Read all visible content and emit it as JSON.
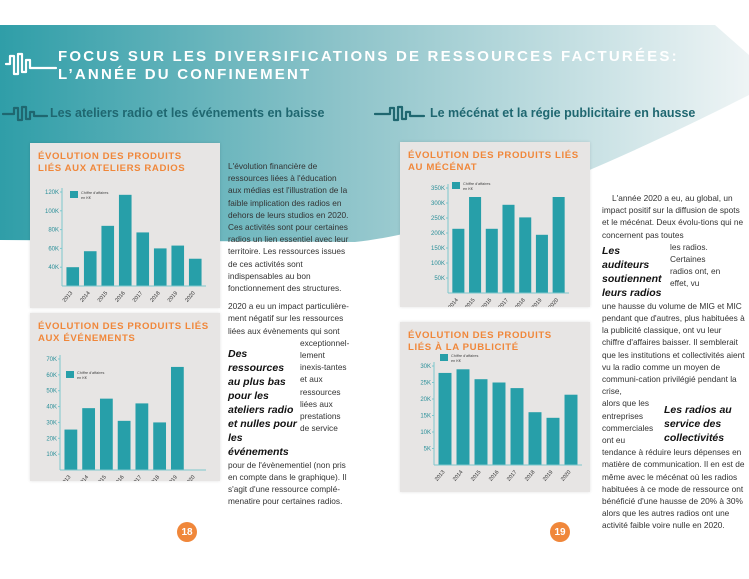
{
  "colors": {
    "teal": "#2aa0aa",
    "orange": "#f0873a",
    "dark_teal": "#1f6770",
    "bar": "#279fa9"
  },
  "header": {
    "title_line1": "FOCUS SUR LES DIVERSIFICATIONS DE  RESSOURCES FACTURÉES:",
    "title_line2": "L’ANNÉE DU CONFINEMENT",
    "icon": "sound-wave-icon"
  },
  "left": {
    "subtitle": "Les ateliers radio et les événements en baisse",
    "text": {
      "p1": "L'évolution financière de ressources liées à l'éducation aux médias est l'illustration de la faible implication des radios en dehors de leurs studios en 2020. Ces activités sont pour certaines radios un lien essentiel avec leur territoire. Les ressources issues de ces activités sont indispensables au bon fonctionnement des structures.",
      "p2a": "2020 a eu un impact particulière-ment négatif sur les ressources liées aux évènements qui sont",
      "p2side": "exceptionnel-lement inexis-tantes et aux ressources liées aux prestations de service",
      "callout": "Des ressources au plus bas pour les ateliers radio et nulles pour les événements",
      "p2b": "pour de l'évènementiel (non pris en compte dans le graphique). Il s'agit d'une ressource complé-menatire pour certaines radios."
    },
    "page_number": "18"
  },
  "right": {
    "subtitle": "Le mécénat et la régie publicitaire en hausse",
    "text": {
      "p1": "L'année 2020 a eu, au global, un impact positif sur la diffusion de spots et le mécénat. Deux évolu-tions qui ne concernent pas toutes",
      "side1": "les radios. Certaines radios ont, en effet, vu",
      "callout1": "Les auditeurs soutiennent leurs radios",
      "p2": "une hausse du volume de MIG et MIC pendant que d'autres, plus habituées à la publicité classique, ont vu leur chiffre d'affaires baisser. Il semblerait que les institutions et collectivités aient vu la radio comme un moyen de communi-cation privilégié pendant  la crise,",
      "side2": "alors que les entreprises commerciales ont eu",
      "callout2": "Les radios au service des collectivités",
      "p3": "tendance à réduire leurs dépenses en matière de communication. Il en est de même avec le mécénat où les radios habituées à ce mode de ressource ont bénéficié d'une hausse de 20% à 30% alors que les autres radios ont une activité faible voire nulle en 2020."
    },
    "page_number": "19"
  },
  "chart_data": [
    {
      "type": "bar",
      "title": "ÉVOLUTION DES PRODUITS LIÉS AUX ATELIERS RADIOS",
      "legend": "Chiffre d'affaires en K€",
      "categories": [
        "2013",
        "2014",
        "2015",
        "2016",
        "2017",
        "2018",
        "2019",
        "2020"
      ],
      "values": [
        40,
        57,
        84,
        117,
        77,
        60,
        63,
        49
      ],
      "ylim": [
        20,
        120
      ],
      "yticks": [
        "40K",
        "60K",
        "80K",
        "100K",
        "120K"
      ],
      "ytick_values": [
        40,
        60,
        80,
        100,
        120
      ]
    },
    {
      "type": "bar",
      "title": "ÉVOLUTION DES PRODUITS LIÉS AUX ÉVÉNEMENTS",
      "legend": "Chiffre d'affaires en K€",
      "categories": [
        "2013",
        "2014",
        "2015",
        "2016",
        "2017",
        "2018",
        "2019",
        "2020"
      ],
      "values": [
        25.5,
        39,
        45,
        31,
        42,
        30,
        65,
        0
      ],
      "ylim": [
        0,
        70
      ],
      "yticks": [
        "10K",
        "20K",
        "30K",
        "40K",
        "50K",
        "60K",
        "70K"
      ],
      "ytick_values": [
        10,
        20,
        30,
        40,
        50,
        60,
        70
      ]
    },
    {
      "type": "bar",
      "title": "ÉVOLUTION DES PRODUITS LIÉS AU MÉCÉNAT",
      "legend": "Chiffre d'affaires en K€",
      "categories": [
        "2014",
        "2015",
        "2016",
        "2017",
        "2018",
        "2019",
        "2020"
      ],
      "values": [
        214,
        320,
        214,
        294,
        252,
        194,
        320
      ],
      "ylim": [
        0,
        350
      ],
      "yticks": [
        "50K",
        "100K",
        "150K",
        "200K",
        "250K",
        "300K",
        "350K"
      ],
      "ytick_values": [
        50,
        100,
        150,
        200,
        250,
        300,
        350
      ]
    },
    {
      "type": "bar",
      "title": "ÉVOLUTION DES PRODUITS LIÉS À LA PUBLICITÉ",
      "legend": "Chiffre d'affaires en K€",
      "categories": [
        "2013",
        "2014",
        "2015",
        "2016",
        "2017",
        "2018",
        "2019",
        "2020"
      ],
      "values": [
        27.9,
        29,
        26,
        25,
        23.3,
        16,
        14.3,
        21.3
      ],
      "ylim": [
        0,
        30
      ],
      "yticks": [
        "5K",
        "10K",
        "15K",
        "20K",
        "25K",
        "30K"
      ],
      "ytick_values": [
        5,
        10,
        15,
        20,
        25,
        30
      ]
    }
  ]
}
